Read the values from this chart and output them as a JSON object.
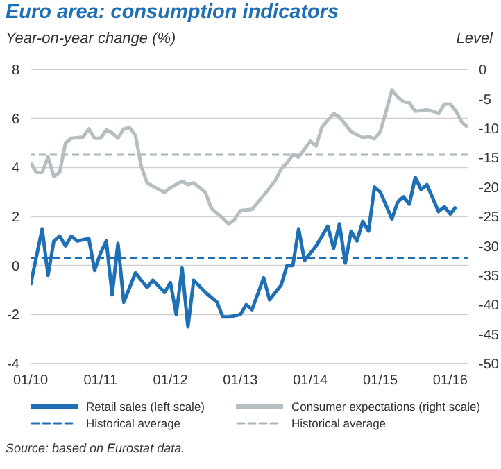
{
  "chart_data": {
    "type": "line",
    "title": "Euro area: consumption indicators",
    "ylabel": "Year-on-year change (%)",
    "y2label": "Level",
    "annotations": [
      "Source: based on Eurostat data."
    ],
    "xlim": [
      "2010-01",
      "2016-04"
    ],
    "xticks": [
      {
        "value": "2010-01",
        "label": "01/10"
      },
      {
        "value": "2011-01",
        "label": "01/11"
      },
      {
        "value": "2012-01",
        "label": "01/12"
      },
      {
        "value": "2013-01",
        "label": "01/13"
      },
      {
        "value": "2014-01",
        "label": "01/14"
      },
      {
        "value": "2015-01",
        "label": "01/15"
      },
      {
        "value": "2016-01",
        "label": "01/16"
      }
    ],
    "ylim": [
      -4,
      8
    ],
    "yticks": [
      -4,
      -2,
      0,
      2,
      4,
      6,
      8
    ],
    "y2lim": [
      -50,
      0
    ],
    "y2ticks": [
      -50,
      -45,
      -40,
      -35,
      -30,
      -25,
      -20,
      -15,
      -10,
      -5,
      0
    ],
    "grid": "y",
    "legend": "bottom",
    "line_style": "solid",
    "marker": "none",
    "series": [
      {
        "name": "Retail sales (left scale)",
        "color": "#1f6fb5",
        "axis": "y",
        "x": [
          "2010-01",
          "2010-03",
          "2010-04",
          "2010-05",
          "2010-06",
          "2010-07",
          "2010-08",
          "2010-09",
          "2010-11",
          "2010-12",
          "2011-01",
          "2011-02",
          "2011-03",
          "2011-04",
          "2011-05",
          "2011-07",
          "2011-09",
          "2011-10",
          "2011-12",
          "2012-01",
          "2012-02",
          "2012-03",
          "2012-04",
          "2012-05",
          "2012-07",
          "2012-09",
          "2012-10",
          "2012-11",
          "2013-01",
          "2013-02",
          "2013-03",
          "2013-05",
          "2013-06",
          "2013-08",
          "2013-09",
          "2013-10",
          "2013-11",
          "2013-12",
          "2014-02",
          "2014-04",
          "2014-05",
          "2014-06",
          "2014-07",
          "2014-08",
          "2014-09",
          "2014-10",
          "2014-11",
          "2014-12",
          "2015-01",
          "2015-03",
          "2015-04",
          "2015-05",
          "2015-06",
          "2015-07",
          "2015-08",
          "2015-09",
          "2015-11",
          "2015-12",
          "2016-01",
          "2016-02"
        ],
        "values": [
          -0.8,
          1.5,
          -0.4,
          1.0,
          1.2,
          0.8,
          1.2,
          1.0,
          1.1,
          -0.2,
          0.5,
          1.0,
          -1.2,
          0.9,
          -1.5,
          -0.3,
          -0.9,
          -0.6,
          -1.1,
          -0.7,
          -2.0,
          -0.1,
          -2.5,
          -0.6,
          -1.1,
          -1.5,
          -2.1,
          -2.1,
          -2.0,
          -1.6,
          -1.8,
          -0.5,
          -1.4,
          -0.8,
          0.0,
          0.0,
          1.5,
          0.2,
          0.8,
          1.6,
          0.7,
          1.7,
          0.1,
          1.4,
          1.0,
          1.8,
          1.4,
          3.2,
          3.0,
          1.9,
          2.6,
          2.8,
          2.5,
          3.6,
          3.1,
          3.3,
          2.2,
          2.4,
          2.1,
          2.4
        ]
      },
      {
        "name": "Consumer expectations (right scale)",
        "color": "#b5bfc2",
        "axis": "y2",
        "x": [
          "2010-01",
          "2010-02",
          "2010-03",
          "2010-04",
          "2010-05",
          "2010-06",
          "2010-07",
          "2010-08",
          "2010-10",
          "2010-11",
          "2010-12",
          "2011-01",
          "2011-02",
          "2011-03",
          "2011-04",
          "2011-05",
          "2011-06",
          "2011-07",
          "2011-08",
          "2011-09",
          "2011-11",
          "2011-12",
          "2012-01",
          "2012-03",
          "2012-04",
          "2012-05",
          "2012-07",
          "2012-08",
          "2012-10",
          "2012-11",
          "2012-12",
          "2013-01",
          "2013-03",
          "2013-04",
          "2013-05",
          "2013-07",
          "2013-08",
          "2013-09",
          "2013-10",
          "2013-11",
          "2014-01",
          "2014-02",
          "2014-03",
          "2014-05",
          "2014-06",
          "2014-08",
          "2014-10",
          "2014-11",
          "2014-12",
          "2015-01",
          "2015-02",
          "2015-03",
          "2015-04",
          "2015-05",
          "2015-06",
          "2015-07",
          "2015-09",
          "2015-10",
          "2015-11",
          "2015-12",
          "2016-01",
          "2016-02",
          "2016-03",
          "2016-04"
        ],
        "values": [
          -15.8,
          -17.5,
          -17.5,
          -14.9,
          -18.2,
          -17.5,
          -12.5,
          -11.7,
          -11.5,
          -10.1,
          -11.7,
          -11.7,
          -10.3,
          -10.8,
          -11.7,
          -10.1,
          -9.9,
          -11.2,
          -16.5,
          -19.3,
          -20.4,
          -20.9,
          -20.1,
          -19.0,
          -19.6,
          -19.3,
          -20.9,
          -23.6,
          -25.3,
          -26.3,
          -25.5,
          -24.0,
          -23.8,
          -22.6,
          -21.4,
          -18.9,
          -16.9,
          -15.9,
          -14.5,
          -14.9,
          -12.2,
          -13.0,
          -9.8,
          -7.5,
          -8.1,
          -10.6,
          -11.6,
          -11.4,
          -11.8,
          -10.6,
          -7.1,
          -3.5,
          -4.7,
          -5.5,
          -5.7,
          -7.1,
          -6.9,
          -7.1,
          -7.5,
          -5.9,
          -5.9,
          -7.1,
          -9.0,
          -9.8
        ]
      }
    ],
    "ref_lines": [
      {
        "axis": "y",
        "value": 0.3,
        "label": "Historical average",
        "color": "#1f6fb5",
        "line_style": "dashed"
      },
      {
        "axis": "y2",
        "value": -14.5,
        "label": "Historical average",
        "color": "#a9b5b9",
        "line_style": "dashed"
      }
    ]
  }
}
